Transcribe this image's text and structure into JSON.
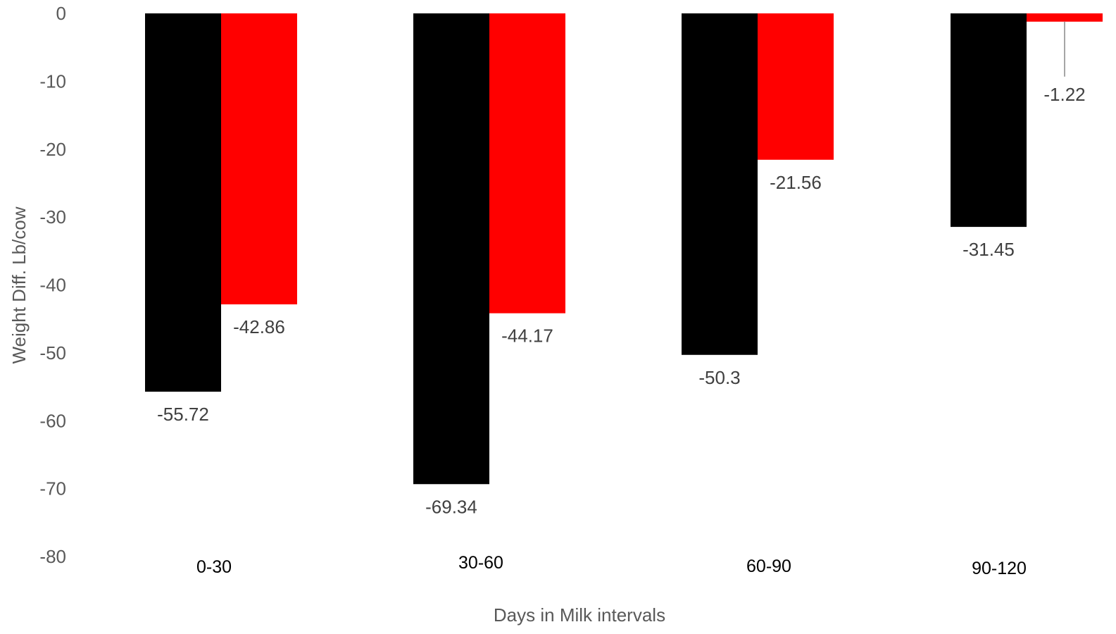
{
  "chart_data": {
    "type": "bar",
    "categories": [
      "0-30",
      "30-60",
      "60-90",
      "90-120"
    ],
    "series": [
      {
        "values": [
          -55.72,
          -69.34,
          -50.3,
          -31.45
        ],
        "color": "#000000"
      },
      {
        "values": [
          -42.86,
          -44.17,
          -21.56,
          -1.22
        ],
        "color": "#ff0000"
      }
    ],
    "data_labels": [
      [
        "-55.72",
        "-69.34",
        "-50.3",
        "-31.45"
      ],
      [
        "-42.86",
        "-44.17",
        "-21.56",
        "-1.22"
      ]
    ],
    "xlabel": "Days in Milk intervals",
    "ylabel": "Weight Diff. Lb/cow",
    "ylim": [
      -80,
      0
    ],
    "yticks": [
      0,
      -10,
      -20,
      -30,
      -40,
      -50,
      -60,
      -70,
      -80
    ],
    "grid": false,
    "legend": "none"
  }
}
